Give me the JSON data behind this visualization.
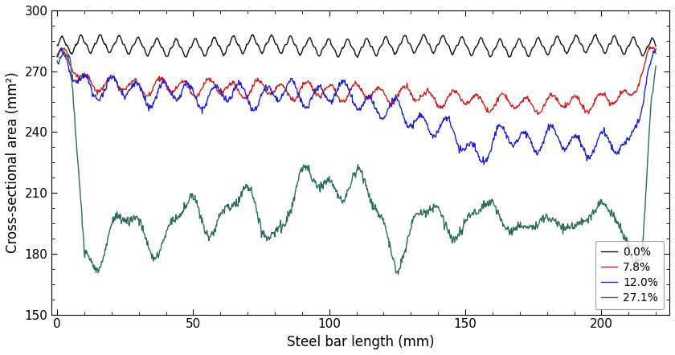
{
  "title": "",
  "xlabel": "Steel bar length (mm)",
  "ylabel": "Cross-sectional area (mm²)",
  "xlim": [
    -2,
    225
  ],
  "ylim": [
    150,
    300
  ],
  "yticks": [
    150,
    180,
    210,
    240,
    270,
    300
  ],
  "xticks": [
    0,
    50,
    100,
    150,
    200
  ],
  "legend_labels": [
    "0.0%",
    "7.8%",
    "12.0%",
    "27.1%"
  ],
  "legend_colors": [
    "#111111",
    "#cc2222",
    "#2222cc",
    "#2e6b5e"
  ],
  "background_color": "#ffffff",
  "line_width": 1.0,
  "legend_loc": "lower right",
  "figsize": [
    8.4,
    4.42
  ],
  "dpi": 100
}
